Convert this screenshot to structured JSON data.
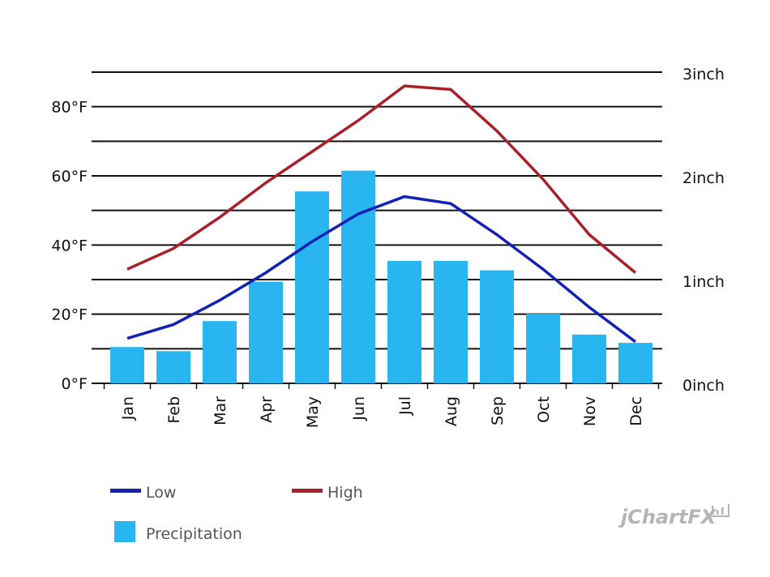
{
  "chart_data": {
    "type": "bar",
    "title": "",
    "categories": [
      "Jan",
      "Feb",
      "Mar",
      "Apr",
      "May",
      "Jun",
      "Jul",
      "Aug",
      "Sep",
      "Oct",
      "Nov",
      "Dec"
    ],
    "series": [
      {
        "name": "Precipitation",
        "kind": "bar",
        "axis": "right",
        "color": "#29b6f0",
        "values": [
          0.35,
          0.31,
          0.6,
          0.98,
          1.85,
          2.05,
          1.18,
          1.18,
          1.09,
          0.67,
          0.47,
          0.39
        ]
      },
      {
        "name": "Low",
        "kind": "line",
        "axis": "left",
        "color": "#1321b4",
        "values": [
          13,
          17,
          24,
          32,
          41,
          49,
          54,
          52,
          43,
          33,
          22,
          12
        ]
      },
      {
        "name": "High",
        "kind": "line",
        "axis": "left",
        "color": "#a8202a",
        "values": [
          33,
          39,
          48,
          58,
          67,
          76,
          86,
          85,
          73,
          59,
          43,
          32
        ]
      }
    ],
    "left_axis": {
      "ylim": [
        0,
        90
      ],
      "ticks": [
        {
          "value": 0,
          "label": "0°F"
        },
        {
          "value": 20,
          "label": "20°F"
        },
        {
          "value": 40,
          "label": "40°F"
        },
        {
          "value": 60,
          "label": "60°F"
        },
        {
          "value": 80,
          "label": "80°F"
        }
      ]
    },
    "right_axis": {
      "ylim": [
        0,
        3
      ],
      "ticks": [
        {
          "value": 0,
          "label": "0inch"
        },
        {
          "value": 1,
          "label": "1inch"
        },
        {
          "value": 2,
          "label": "2inch"
        },
        {
          "value": 3,
          "label": "3inch"
        }
      ]
    },
    "gridlines": [
      10,
      20,
      30,
      40,
      50,
      60,
      70,
      80,
      90
    ],
    "grid": true,
    "legend": {
      "position": "bottom-left",
      "items": [
        {
          "label": "Low",
          "symbol": "line",
          "color": "#1321b4"
        },
        {
          "label": "High",
          "symbol": "line",
          "color": "#a8202a"
        },
        {
          "label": "Precipitation",
          "symbol": "box",
          "color": "#29b6f0"
        }
      ]
    }
  },
  "watermark": {
    "text": "jChartFX",
    "icon": "bar-chart-icon"
  }
}
